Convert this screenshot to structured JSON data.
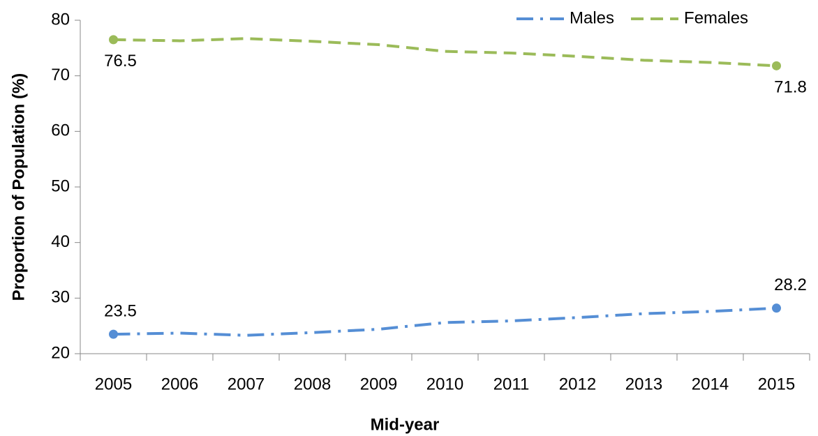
{
  "chart_data": {
    "type": "line",
    "x_label": "Mid-year",
    "y_label": "Proportion of Population (%)",
    "categories": [
      "2005",
      "2006",
      "2007",
      "2008",
      "2009",
      "2010",
      "2011",
      "2012",
      "2013",
      "2014",
      "2015"
    ],
    "series": [
      {
        "name": "Males",
        "color": "#558ed5",
        "line_style": "dash-dot",
        "label_position": "above",
        "values": [
          23.5,
          23.7,
          23.3,
          23.8,
          24.4,
          25.6,
          25.9,
          26.5,
          27.2,
          27.6,
          28.2
        ],
        "value_labels": [
          "23.5",
          null,
          null,
          null,
          null,
          null,
          null,
          null,
          null,
          null,
          "28.2"
        ]
      },
      {
        "name": "Females",
        "color": "#9bbb59",
        "line_style": "dashed",
        "label_position": "below",
        "values": [
          76.5,
          76.3,
          76.7,
          76.2,
          75.6,
          74.4,
          74.1,
          73.5,
          72.8,
          72.4,
          71.8
        ],
        "value_labels": [
          "76.5",
          null,
          null,
          null,
          null,
          null,
          null,
          null,
          null,
          null,
          "71.8"
        ]
      }
    ],
    "ylim": [
      20,
      80
    ],
    "yticks": [
      20,
      30,
      40,
      50,
      60,
      70,
      80
    ],
    "grid": false,
    "legend": "top-right"
  }
}
